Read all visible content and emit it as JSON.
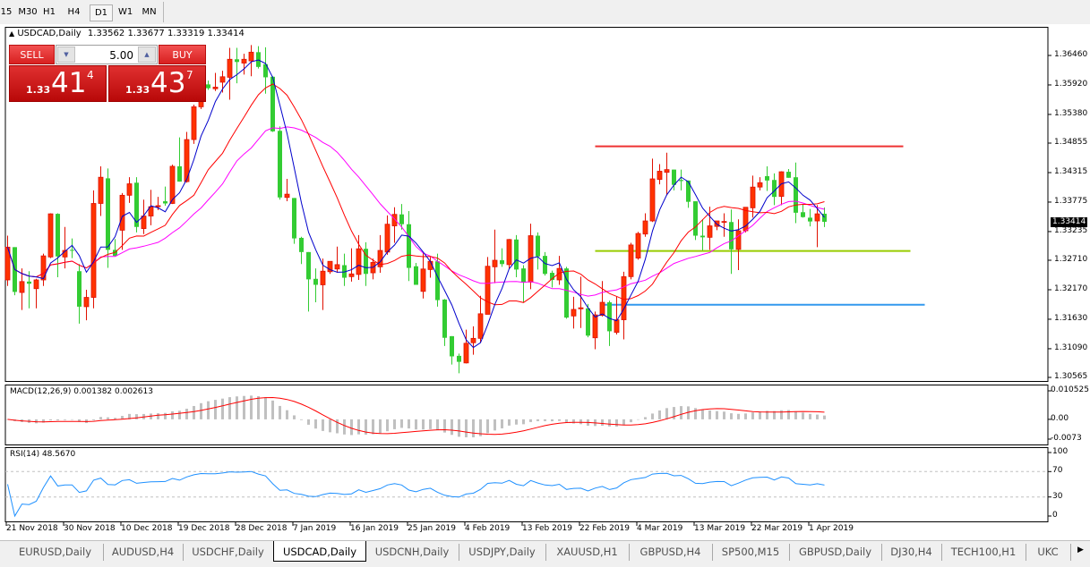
{
  "toolbar": {
    "timeframes": [
      {
        "label": "15",
        "active": false
      },
      {
        "label": "M30",
        "active": false
      },
      {
        "label": "H1",
        "active": false
      },
      {
        "label": "H4",
        "active": false
      },
      {
        "label": "D1",
        "active": true
      },
      {
        "label": "W1",
        "active": false
      },
      {
        "label": "MN",
        "active": false
      }
    ]
  },
  "chart": {
    "title_arrow": "▲",
    "title": "USDCAD,Daily",
    "ohlc_text": "1.33562 1.33677 1.33319 1.33414",
    "current_price": "1.33414"
  },
  "trade_panel": {
    "sell_label": "SELL",
    "buy_label": "BUY",
    "lot": "5.00",
    "down_icon": "▼",
    "up_icon": "▲",
    "sell_price": {
      "prefix": "1.33",
      "big": "41",
      "sup": "4"
    },
    "buy_price": {
      "prefix": "1.33",
      "big": "43",
      "sup": "7"
    }
  },
  "colors": {
    "bull": "#ff3300",
    "bull_border": "#e01000",
    "bear": "#33cc33",
    "ma_fast": "#0000cc",
    "ma_mid": "#ff0000",
    "ma_slow": "#ff00ff",
    "macd_hist": "#c0c0c0",
    "macd_signal": "#ff0000",
    "rsi": "#1e90ff",
    "line_resistance": "#ee3333",
    "line_support_mid": "#99cc00",
    "line_support_low": "#3399ee"
  },
  "chart_data": {
    "type": "candlestick",
    "price_axis": {
      "range": [
        1.30565,
        1.3646
      ],
      "ticks": [
        "1.36460",
        "1.35920",
        "1.35380",
        "1.34855",
        "1.34315",
        "1.33775",
        "1.33235",
        "1.32710",
        "1.32170",
        "1.31630",
        "1.31090",
        "1.30565"
      ]
    },
    "date_labels": [
      {
        "bar": 0,
        "label": "21 Nov 2018"
      },
      {
        "bar": 8,
        "label": "30 Nov 2018"
      },
      {
        "bar": 16,
        "label": "10 Dec 2018"
      },
      {
        "bar": 24,
        "label": "19 Dec 2018"
      },
      {
        "bar": 32,
        "label": "28 Dec 2018"
      },
      {
        "bar": 40,
        "label": "7 Jan 2019"
      },
      {
        "bar": 48,
        "label": "16 Jan 2019"
      },
      {
        "bar": 56,
        "label": "25 Jan 2019"
      },
      {
        "bar": 64,
        "label": "4 Feb 2019"
      },
      {
        "bar": 72,
        "label": "13 Feb 2019"
      },
      {
        "bar": 80,
        "label": "22 Feb 2019"
      },
      {
        "bar": 88,
        "label": "4 Mar 2019"
      },
      {
        "bar": 96,
        "label": "13 Mar 2019"
      },
      {
        "bar": 104,
        "label": "22 Mar 2019"
      },
      {
        "bar": 112,
        "label": "1 Apr 2019"
      }
    ],
    "ohlc": [
      [
        1.3235,
        1.3316,
        1.3224,
        1.3295
      ],
      [
        1.3295,
        1.3295,
        1.3207,
        1.3213
      ],
      [
        1.3212,
        1.3256,
        1.318,
        1.3232
      ],
      [
        1.3232,
        1.3251,
        1.3183,
        1.3228
      ],
      [
        1.3219,
        1.3237,
        1.3183,
        1.3235
      ],
      [
        1.3235,
        1.3283,
        1.3224,
        1.3279
      ],
      [
        1.3277,
        1.3357,
        1.3275,
        1.3356
      ],
      [
        1.3356,
        1.3357,
        1.324,
        1.3278
      ],
      [
        1.3277,
        1.3332,
        1.3256,
        1.3289
      ],
      [
        1.329,
        1.3311,
        1.3275,
        1.3289
      ],
      [
        1.3251,
        1.3264,
        1.3155,
        1.3186
      ],
      [
        1.3186,
        1.3217,
        1.3161,
        1.3203
      ],
      [
        1.3203,
        1.3399,
        1.3183,
        1.3375
      ],
      [
        1.3375,
        1.3443,
        1.3352,
        1.3423
      ],
      [
        1.3421,
        1.3439,
        1.3257,
        1.329
      ],
      [
        1.329,
        1.331,
        1.3278,
        1.3279
      ],
      [
        1.3326,
        1.3394,
        1.329,
        1.339
      ],
      [
        1.339,
        1.3423,
        1.3376,
        1.3411
      ],
      [
        1.3413,
        1.3423,
        1.3322,
        1.3332
      ],
      [
        1.3329,
        1.3382,
        1.3319,
        1.3352
      ],
      [
        1.3352,
        1.34,
        1.3335,
        1.3369
      ],
      [
        1.3369,
        1.3387,
        1.3363,
        1.3371
      ],
      [
        1.3379,
        1.3406,
        1.3371,
        1.3375
      ],
      [
        1.3375,
        1.3446,
        1.3374,
        1.3443
      ],
      [
        1.3443,
        1.3496,
        1.3415,
        1.3415
      ],
      [
        1.3415,
        1.3506,
        1.3413,
        1.3492
      ],
      [
        1.3492,
        1.3556,
        1.3484,
        1.3552
      ],
      [
        1.3552,
        1.3597,
        1.3548,
        1.359
      ],
      [
        1.3593,
        1.36,
        1.3583,
        1.3586
      ],
      [
        1.3585,
        1.3614,
        1.3581,
        1.3588
      ],
      [
        1.3597,
        1.3618,
        1.3578,
        1.3607
      ],
      [
        1.3606,
        1.366,
        1.3565,
        1.3639
      ],
      [
        1.3639,
        1.366,
        1.3595,
        1.3634
      ],
      [
        1.3632,
        1.3649,
        1.3611,
        1.3639
      ],
      [
        1.3636,
        1.3665,
        1.3608,
        1.3652
      ],
      [
        1.3652,
        1.3663,
        1.3622,
        1.3625
      ],
      [
        1.363,
        1.3661,
        1.3576,
        1.3606
      ],
      [
        1.3607,
        1.3608,
        1.3506,
        1.3507
      ],
      [
        1.3508,
        1.3516,
        1.3382,
        1.3386
      ],
      [
        1.3386,
        1.342,
        1.3379,
        1.3392
      ],
      [
        1.3385,
        1.3385,
        1.3301,
        1.3311
      ],
      [
        1.3312,
        1.3314,
        1.3264,
        1.3286
      ],
      [
        1.3286,
        1.3286,
        1.3177,
        1.3236
      ],
      [
        1.3237,
        1.3256,
        1.3194,
        1.3226
      ],
      [
        1.3226,
        1.3274,
        1.318,
        1.3251
      ],
      [
        1.325,
        1.3269,
        1.3246,
        1.3269
      ],
      [
        1.3255,
        1.3296,
        1.3248,
        1.3263
      ],
      [
        1.3262,
        1.3283,
        1.3224,
        1.3239
      ],
      [
        1.3241,
        1.3293,
        1.3232,
        1.3246
      ],
      [
        1.3245,
        1.3317,
        1.3235,
        1.3292
      ],
      [
        1.3292,
        1.3304,
        1.3224,
        1.3246
      ],
      [
        1.3248,
        1.3274,
        1.3236,
        1.3267
      ],
      [
        1.3259,
        1.3317,
        1.3248,
        1.3289
      ],
      [
        1.3286,
        1.3353,
        1.3281,
        1.3337
      ],
      [
        1.3334,
        1.3368,
        1.3303,
        1.3355
      ],
      [
        1.3355,
        1.3374,
        1.3327,
        1.3337
      ],
      [
        1.3337,
        1.3361,
        1.3233,
        1.3257
      ],
      [
        1.326,
        1.3266,
        1.3226,
        1.3226
      ],
      [
        1.3214,
        1.3284,
        1.3201,
        1.3255
      ],
      [
        1.3254,
        1.3277,
        1.3239,
        1.3269
      ],
      [
        1.3269,
        1.3283,
        1.3186,
        1.3198
      ],
      [
        1.3199,
        1.32,
        1.3114,
        1.3129
      ],
      [
        1.3132,
        1.3132,
        1.308,
        1.3095
      ],
      [
        1.3096,
        1.31,
        1.3064,
        1.3085
      ],
      [
        1.3083,
        1.3144,
        1.3082,
        1.3119
      ],
      [
        1.312,
        1.315,
        1.3098,
        1.3128
      ],
      [
        1.3128,
        1.3206,
        1.312,
        1.3173
      ],
      [
        1.3172,
        1.3277,
        1.3172,
        1.326
      ],
      [
        1.3259,
        1.3327,
        1.3229,
        1.3271
      ],
      [
        1.3271,
        1.3293,
        1.3259,
        1.3264
      ],
      [
        1.3263,
        1.331,
        1.3256,
        1.3309
      ],
      [
        1.3309,
        1.3317,
        1.324,
        1.3254
      ],
      [
        1.3256,
        1.3262,
        1.3194,
        1.3231
      ],
      [
        1.3231,
        1.3338,
        1.3218,
        1.3316
      ],
      [
        1.3316,
        1.3322,
        1.3254,
        1.3278
      ],
      [
        1.3279,
        1.3286,
        1.3243,
        1.3246
      ],
      [
        1.3248,
        1.3252,
        1.3221,
        1.3235
      ],
      [
        1.3235,
        1.3279,
        1.3226,
        1.3256
      ],
      [
        1.3256,
        1.3259,
        1.3164,
        1.3166
      ],
      [
        1.3169,
        1.3204,
        1.3146,
        1.3181
      ],
      [
        1.3182,
        1.3241,
        1.3147,
        1.3184
      ],
      [
        1.3183,
        1.3191,
        1.313,
        1.3133
      ],
      [
        1.3129,
        1.3177,
        1.3108,
        1.3171
      ],
      [
        1.317,
        1.3233,
        1.3168,
        1.3194
      ],
      [
        1.3194,
        1.3197,
        1.3114,
        1.3141
      ],
      [
        1.3139,
        1.3204,
        1.3135,
        1.3162
      ],
      [
        1.3162,
        1.325,
        1.3126,
        1.3241
      ],
      [
        1.3241,
        1.3303,
        1.3236,
        1.3299
      ],
      [
        1.3275,
        1.3323,
        1.3272,
        1.332
      ],
      [
        1.3319,
        1.3357,
        1.3314,
        1.3343
      ],
      [
        1.3343,
        1.3457,
        1.3341,
        1.342
      ],
      [
        1.3419,
        1.3447,
        1.341,
        1.3434
      ],
      [
        1.3432,
        1.3468,
        1.339,
        1.3437
      ],
      [
        1.3437,
        1.3437,
        1.3399,
        1.3409
      ],
      [
        1.3418,
        1.3437,
        1.3399,
        1.3416
      ],
      [
        1.3417,
        1.3417,
        1.3367,
        1.3378
      ],
      [
        1.3379,
        1.3379,
        1.3308,
        1.3316
      ],
      [
        1.3316,
        1.3346,
        1.3289,
        1.3313
      ],
      [
        1.3313,
        1.3369,
        1.329,
        1.3334
      ],
      [
        1.3333,
        1.3343,
        1.3326,
        1.3343
      ],
      [
        1.3341,
        1.3357,
        1.3314,
        1.3342
      ],
      [
        1.3341,
        1.3364,
        1.3246,
        1.3291
      ],
      [
        1.3291,
        1.3346,
        1.3253,
        1.3325
      ],
      [
        1.3325,
        1.3368,
        1.3322,
        1.3368
      ],
      [
        1.3367,
        1.3426,
        1.3349,
        1.3405
      ],
      [
        1.3405,
        1.3423,
        1.3399,
        1.3413
      ],
      [
        1.3425,
        1.3443,
        1.3398,
        1.3417
      ],
      [
        1.3418,
        1.343,
        1.3372,
        1.3387
      ],
      [
        1.3388,
        1.3434,
        1.3372,
        1.3433
      ],
      [
        1.3433,
        1.3438,
        1.3422,
        1.3422
      ],
      [
        1.3423,
        1.345,
        1.3339,
        1.3358
      ],
      [
        1.3359,
        1.3373,
        1.3349,
        1.335
      ],
      [
        1.3349,
        1.3365,
        1.3333,
        1.3342
      ],
      [
        1.3343,
        1.3372,
        1.3295,
        1.3356
      ],
      [
        1.33562,
        1.33677,
        1.33319,
        1.33414
      ]
    ],
    "horizontal_lines": [
      {
        "price": 1.34795,
        "from_bar": 82,
        "to_bar": 125,
        "color": "#ee3333"
      },
      {
        "price": 1.32879,
        "from_bar": 82,
        "to_bar": 126,
        "color": "#99cc00"
      },
      {
        "price": 1.31896,
        "from_bar": 83,
        "to_bar": 128,
        "color": "#3399ee"
      }
    ],
    "macd": {
      "label": "MACD(12,26,9) 0.001382 0.002613",
      "range": [
        -0.0073,
        0.010525
      ],
      "ticks": [
        "0.010525",
        "0.00",
        "-0.0073"
      ]
    },
    "rsi": {
      "label": "RSI(14) 48.5670",
      "range": [
        0,
        100
      ],
      "levels": [
        70,
        30
      ],
      "ticks": [
        "100",
        "70",
        "30",
        "0"
      ]
    }
  },
  "bottom_tabs": [
    {
      "label": "EURUSD,Daily",
      "active": false
    },
    {
      "label": "AUDUSD,H4",
      "active": false
    },
    {
      "label": "USDCHF,Daily",
      "active": false
    },
    {
      "label": "USDCAD,Daily",
      "active": true
    },
    {
      "label": "USDCNH,Daily",
      "active": false
    },
    {
      "label": "USDJPY,Daily",
      "active": false
    },
    {
      "label": "XAUUSD,H1",
      "active": false
    },
    {
      "label": "GBPUSD,H4",
      "active": false
    },
    {
      "label": "SP500,M15",
      "active": false
    },
    {
      "label": "GBPUSD,Daily",
      "active": false
    },
    {
      "label": "DJ30,H4",
      "active": false
    },
    {
      "label": "TECH100,H1",
      "active": false
    },
    {
      "label": "UKC",
      "active": false
    }
  ],
  "tab_scroll_icon": "▶"
}
